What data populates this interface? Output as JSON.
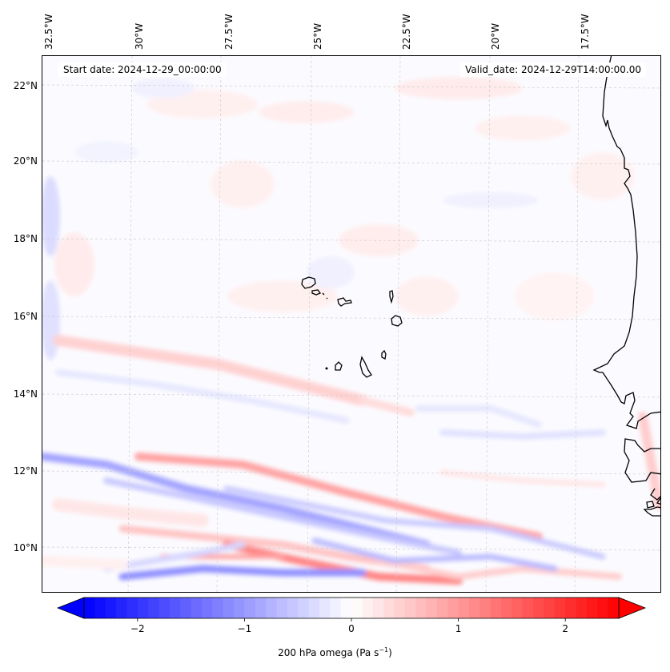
{
  "map": {
    "title_left": "Start date: 2024-12-29_00:00:00",
    "title_right": "Valid_date: 2024-12-29T14:00:00.00",
    "variable": "200 hPa omega",
    "projection_note": "Lambert-like, gridlines dashed",
    "lon_labels": [
      "32.5°W",
      "30°W",
      "27.5°W",
      "25°W",
      "22.5°W",
      "20°W",
      "17.5°W"
    ],
    "lat_labels": [
      "22°N",
      "20°N",
      "18°N",
      "16°N",
      "14°N",
      "12°N",
      "10°N"
    ],
    "extent": {
      "lon_min": -32.8,
      "lon_max": -15.2,
      "lat_min": 8.9,
      "lat_max": 22.8
    },
    "features": [
      "Cape Verde islands",
      "West African coastline (Mauritania, Senegal, Gambia, Guinea-Bissau)"
    ],
    "colors": {
      "negative": "#0000ff",
      "zero": "#ffffff",
      "positive": "#ff0000"
    }
  },
  "colorbar": {
    "label_prefix": "200 hPa omega (Pa s",
    "label_exp": "−1",
    "label_suffix": ")",
    "ticks": [
      "−2",
      "−1",
      "0",
      "1",
      "2"
    ],
    "tick_values": [
      -2,
      -1,
      0,
      1,
      2
    ],
    "range": [
      -2.5,
      2.5
    ],
    "extend": "both",
    "cmap": "bwr"
  }
}
